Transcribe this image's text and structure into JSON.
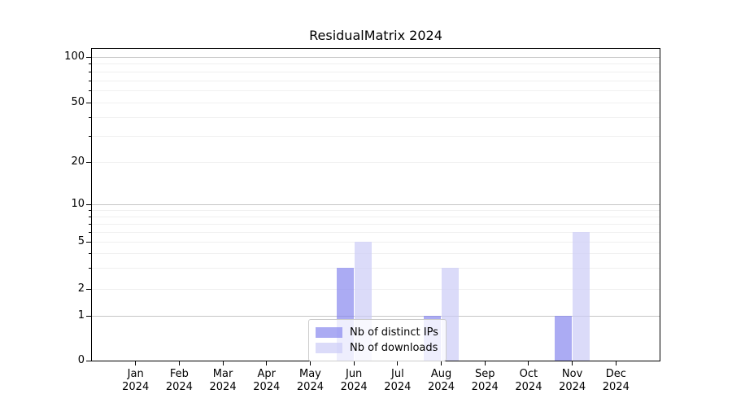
{
  "chart_data": {
    "type": "bar",
    "title": "ResidualMatrix 2024",
    "year_label": "2024",
    "months": [
      "Jan",
      "Feb",
      "Mar",
      "Apr",
      "May",
      "Jun",
      "Jul",
      "Aug",
      "Sep",
      "Oct",
      "Nov",
      "Dec"
    ],
    "series": [
      {
        "name": "Nb of distinct IPs",
        "color": "#8888ee",
        "alpha": 0.7,
        "display_color": "#ababf4",
        "values": [
          0,
          0,
          0,
          0,
          0,
          3,
          0,
          1,
          0,
          0,
          1,
          0
        ]
      },
      {
        "name": "Nb of downloads",
        "color": "#ccccf7",
        "alpha": 0.7,
        "display_color": "#dbdbf9",
        "values": [
          0,
          0,
          0,
          0,
          0,
          5,
          0,
          3,
          0,
          0,
          6,
          0
        ]
      }
    ],
    "y_axis": {
      "scale": "symlog",
      "tick_labels": [
        "0",
        "1",
        "2",
        "5",
        "10",
        "20",
        "50",
        "100"
      ],
      "major_ticks": [
        0,
        1,
        2,
        5,
        10,
        20,
        50,
        100
      ],
      "decade_gridlines": [
        1,
        10,
        100
      ],
      "minor_gridlines": [
        2,
        3,
        4,
        5,
        6,
        7,
        8,
        9,
        20,
        30,
        40,
        50,
        60,
        70,
        80,
        90
      ],
      "ylim_top": 115
    },
    "x_axis": {
      "tick_count": 12
    },
    "legend": {
      "position": "lower center",
      "entries": [
        "Nb of distinct IPs",
        "Nb of downloads"
      ]
    },
    "colors": {
      "grid_major": "#c6c6c6",
      "grid_minor": "#f0f0f0",
      "axis": "#000000",
      "background": "#ffffff",
      "legend_border": "#cccccc"
    },
    "grid": true
  }
}
